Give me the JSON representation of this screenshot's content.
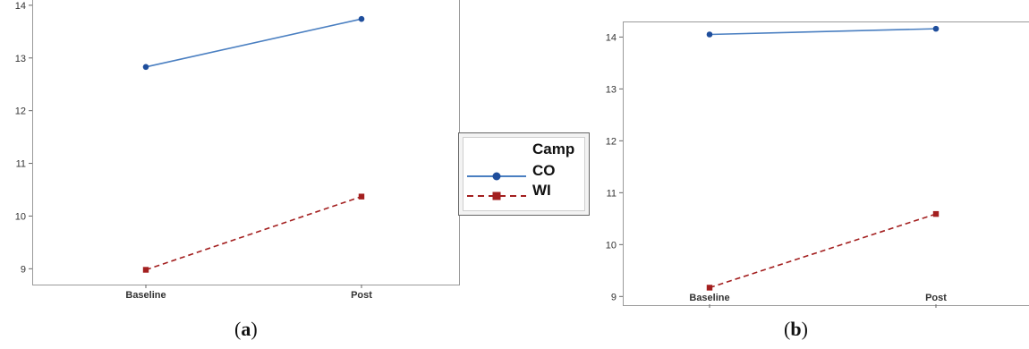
{
  "chart_data": [
    {
      "type": "line",
      "categories": [
        "Baseline",
        "Post"
      ],
      "ylim": [
        8.7,
        14.1
      ],
      "yticks": [
        "9",
        "10",
        "11",
        "12",
        "13",
        "14"
      ],
      "grid": false,
      "series": [
        {
          "name": "CO",
          "values": [
            12.83,
            13.74
          ],
          "color": "#4a7fc1",
          "marker": "circle",
          "dash": false
        },
        {
          "name": "WI",
          "values": [
            8.98,
            10.37
          ],
          "color": "#a31f1f",
          "marker": "square",
          "dash": true
        }
      ],
      "caption": "(a)"
    },
    {
      "type": "line",
      "categories": [
        "Baseline",
        "Post"
      ],
      "ylim": [
        8.85,
        14.3
      ],
      "yticks": [
        "9",
        "10",
        "11",
        "12",
        "13",
        "14"
      ],
      "grid": false,
      "series": [
        {
          "name": "CO",
          "values": [
            14.05,
            14.16
          ],
          "color": "#4a7fc1",
          "marker": "circle",
          "dash": false
        },
        {
          "name": "WI",
          "values": [
            9.17,
            10.59
          ],
          "color": "#a31f1f",
          "marker": "square",
          "dash": true
        }
      ],
      "caption": "(b)"
    }
  ],
  "legend": {
    "title": "Camp",
    "items": [
      {
        "label": "CO",
        "color": "#1f4e9c",
        "marker": "circle",
        "dash": false
      },
      {
        "label": "WI",
        "color": "#a31f1f",
        "marker": "square",
        "dash": true
      }
    ]
  },
  "captions": {
    "a_pre": "(",
    "a_letter": "a",
    "a_post": ")",
    "b_pre": "(",
    "b_letter": "b",
    "b_post": ")"
  }
}
